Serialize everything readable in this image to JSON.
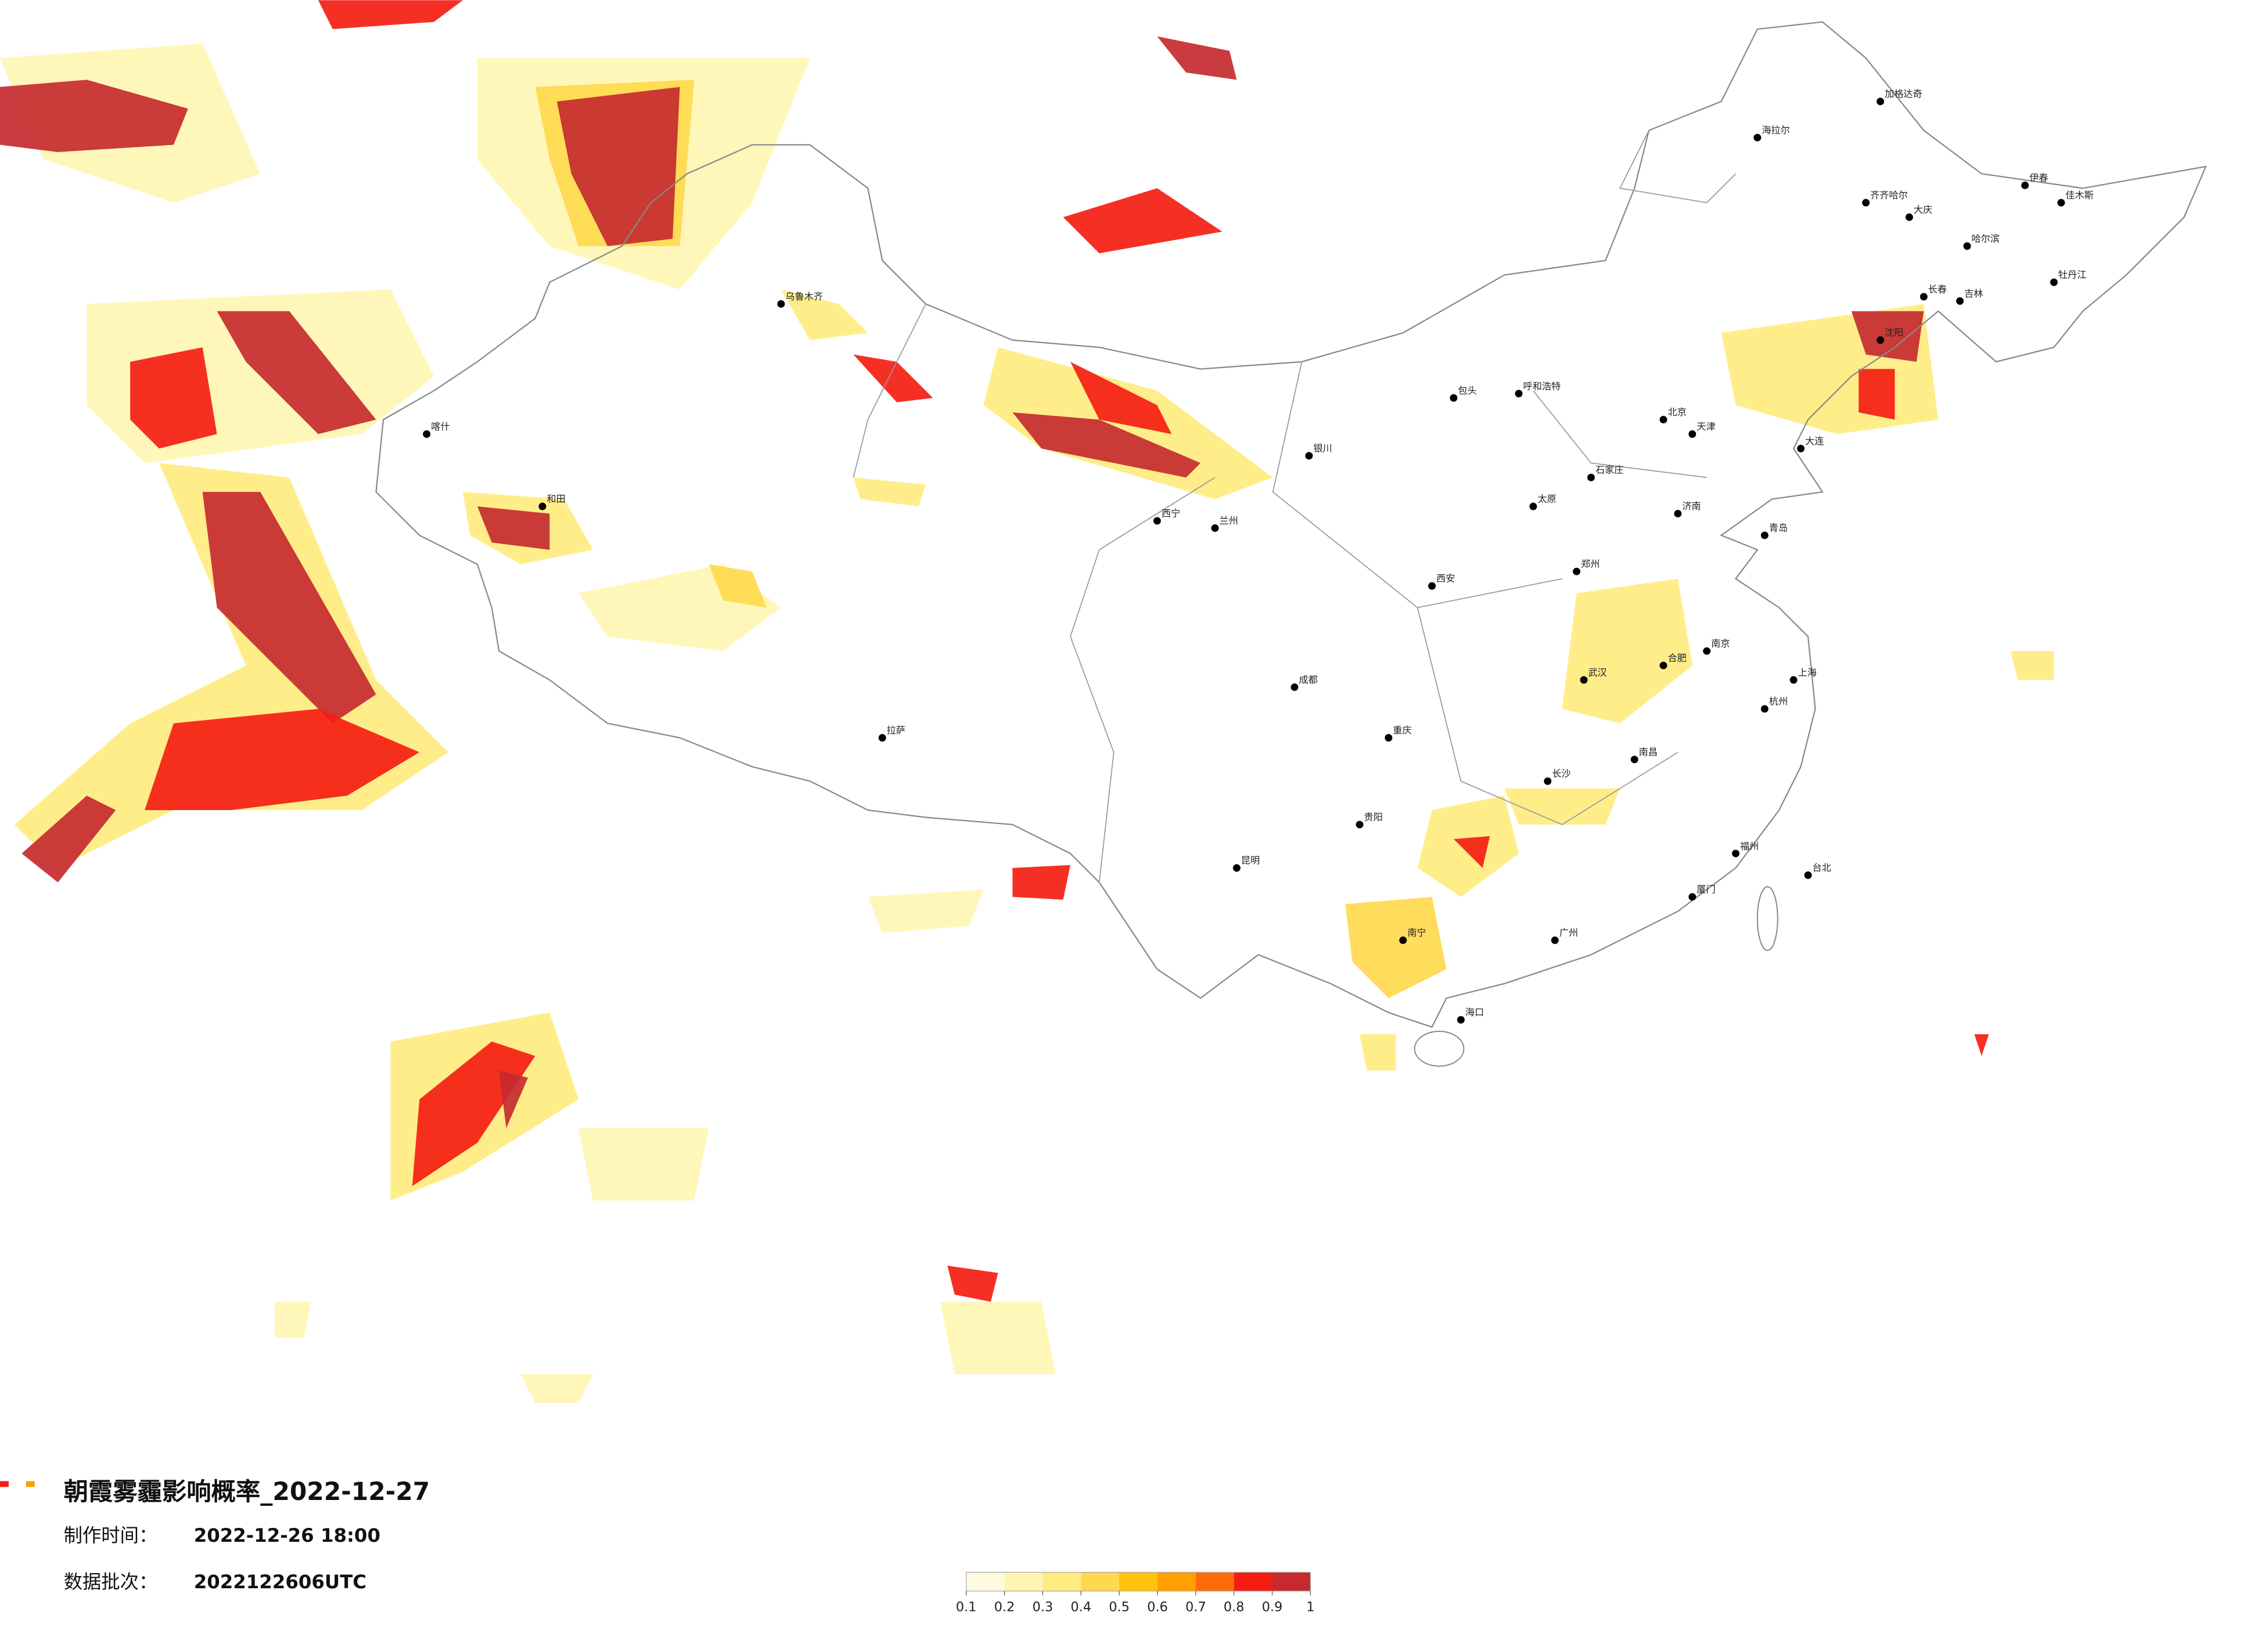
{
  "title": "朝霞雾霾影响概率_2022-12-27",
  "made_time": {
    "label": "制作时间：",
    "value": "2022-12-26 18:00"
  },
  "data_batch": {
    "label": "数据批次：",
    "value": "2022122606UTC"
  },
  "colorbar": {
    "ticks": [
      0.1,
      0.2,
      0.3,
      0.4,
      0.5,
      0.6,
      0.7,
      0.8,
      0.9,
      1
    ],
    "colors": [
      "#fffbe0",
      "#fff5b3",
      "#ffeb80",
      "#ffd94d",
      "#ffc20a",
      "#ff9f00",
      "#ff6a0a",
      "#f51d12",
      "#c62a2f"
    ]
  },
  "cities": [
    "海拉尔",
    "加格达奇",
    "齐齐哈尔",
    "大庆",
    "哈尔滨",
    "伊春",
    "佳木斯",
    "牡丹江",
    "长春",
    "吉林",
    "沈阳",
    "大连",
    "北京",
    "天津",
    "石家庄",
    "太原",
    "呼和浩特",
    "包头",
    "银川",
    "兰州",
    "西宁",
    "西安",
    "郑州",
    "济南",
    "青岛",
    "南京",
    "上海",
    "杭州",
    "合肥",
    "武汉",
    "长沙",
    "南昌",
    "福州",
    "厦门",
    "广州",
    "南宁",
    "海口",
    "贵阳",
    "重庆",
    "成都",
    "昆明",
    "拉萨",
    "乌鲁木齐",
    "喀什",
    "和田",
    "台北"
  ]
}
